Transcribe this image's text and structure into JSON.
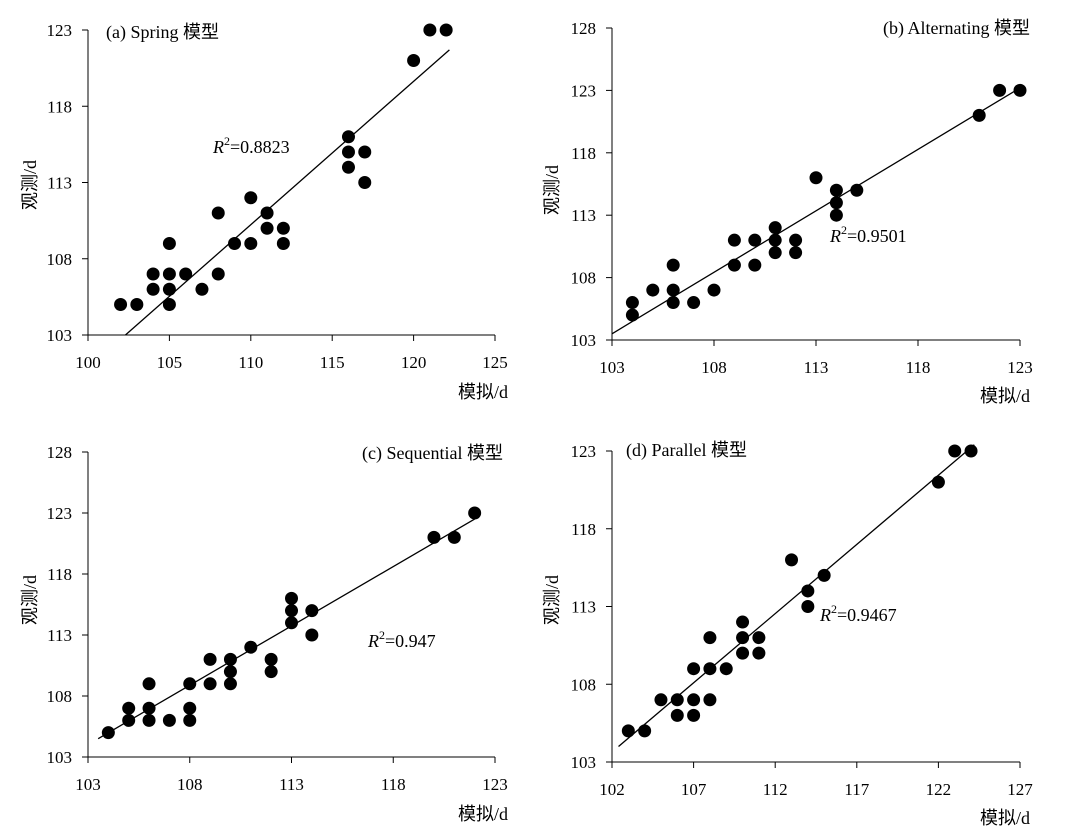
{
  "chart_data": [
    {
      "type": "scatter",
      "title": "(a) Spring 模型",
      "xlabel": "模拟/d",
      "ylabel": "观测/d",
      "xlim": [
        100,
        125
      ],
      "ylim": [
        103,
        123
      ],
      "xticks": [
        100,
        105,
        110,
        115,
        120,
        125
      ],
      "yticks": [
        103,
        108,
        113,
        118,
        123
      ],
      "r2_label": "=0.8823",
      "fit_line": {
        "x": [
          102.3,
          122.2
        ],
        "y": [
          103,
          121.7
        ]
      },
      "points": [
        [
          102,
          105
        ],
        [
          103,
          105
        ],
        [
          104,
          106
        ],
        [
          104,
          107
        ],
        [
          105,
          105
        ],
        [
          105,
          106
        ],
        [
          105,
          107
        ],
        [
          105,
          109
        ],
        [
          106,
          107
        ],
        [
          107,
          106
        ],
        [
          108,
          107
        ],
        [
          108,
          111
        ],
        [
          109,
          109
        ],
        [
          110,
          109
        ],
        [
          110,
          112
        ],
        [
          111,
          110
        ],
        [
          111,
          111
        ],
        [
          112,
          109
        ],
        [
          112,
          110
        ],
        [
          116,
          114
        ],
        [
          116,
          115
        ],
        [
          116,
          116
        ],
        [
          117,
          115
        ],
        [
          117,
          113
        ],
        [
          120,
          121
        ],
        [
          121,
          123
        ],
        [
          122,
          123
        ]
      ]
    },
    {
      "type": "scatter",
      "title": "(b) Alternating 模型",
      "xlabel": "模拟/d",
      "ylabel": "观测/d",
      "xlim": [
        103,
        123
      ],
      "ylim": [
        103,
        128
      ],
      "xticks": [
        103,
        108,
        113,
        118,
        123
      ],
      "yticks": [
        103,
        108,
        113,
        118,
        123,
        128
      ],
      "r2_label": "=0.9501",
      "fit_line": {
        "x": [
          103,
          123
        ],
        "y": [
          103.5,
          123.2
        ]
      },
      "points": [
        [
          104,
          105
        ],
        [
          104,
          106
        ],
        [
          105,
          107
        ],
        [
          106,
          106
        ],
        [
          106,
          107
        ],
        [
          106,
          109
        ],
        [
          107,
          106
        ],
        [
          108,
          107
        ],
        [
          109,
          109
        ],
        [
          109,
          111
        ],
        [
          110,
          109
        ],
        [
          110,
          111
        ],
        [
          111,
          110
        ],
        [
          111,
          111
        ],
        [
          111,
          112
        ],
        [
          112,
          110
        ],
        [
          112,
          111
        ],
        [
          113,
          116
        ],
        [
          114,
          113
        ],
        [
          114,
          114
        ],
        [
          114,
          115
        ],
        [
          115,
          115
        ],
        [
          121,
          121
        ],
        [
          122,
          123
        ],
        [
          123,
          123
        ]
      ]
    },
    {
      "type": "scatter",
      "title": "(c) Sequential 模型",
      "xlabel": "模拟/d",
      "ylabel": "观测/d",
      "xlim": [
        103,
        123
      ],
      "ylim": [
        103,
        128
      ],
      "xticks": [
        103,
        108,
        113,
        118,
        123
      ],
      "yticks": [
        103,
        108,
        113,
        118,
        123,
        128
      ],
      "r2_label": "=0.947",
      "fit_line": {
        "x": [
          103.5,
          122
        ],
        "y": [
          104.5,
          122.5
        ]
      },
      "points": [
        [
          104,
          105
        ],
        [
          105,
          106
        ],
        [
          105,
          107
        ],
        [
          106,
          106
        ],
        [
          106,
          107
        ],
        [
          106,
          109
        ],
        [
          107,
          106
        ],
        [
          108,
          106
        ],
        [
          108,
          107
        ],
        [
          108,
          109
        ],
        [
          109,
          109
        ],
        [
          109,
          111
        ],
        [
          110,
          109
        ],
        [
          110,
          110
        ],
        [
          110,
          111
        ],
        [
          111,
          112
        ],
        [
          112,
          110
        ],
        [
          112,
          111
        ],
        [
          113,
          114
        ],
        [
          113,
          115
        ],
        [
          113,
          116
        ],
        [
          114,
          113
        ],
        [
          114,
          115
        ],
        [
          120,
          121
        ],
        [
          121,
          121
        ],
        [
          122,
          123
        ]
      ]
    },
    {
      "type": "scatter",
      "title": "(d) Parallel 模型",
      "xlabel": "模拟/d",
      "ylabel": "观测/d",
      "xlim": [
        102,
        127
      ],
      "ylim": [
        103,
        123
      ],
      "xticks": [
        102,
        107,
        112,
        117,
        122,
        127
      ],
      "yticks": [
        103,
        108,
        113,
        118,
        123
      ],
      "r2_label": "=0.9467",
      "fit_line": {
        "x": [
          102.4,
          124.2
        ],
        "y": [
          104,
          123.4
        ]
      },
      "points": [
        [
          103,
          105
        ],
        [
          104,
          105
        ],
        [
          105,
          107
        ],
        [
          106,
          106
        ],
        [
          106,
          107
        ],
        [
          107,
          106
        ],
        [
          107,
          107
        ],
        [
          107,
          109
        ],
        [
          108,
          107
        ],
        [
          108,
          109
        ],
        [
          108,
          111
        ],
        [
          109,
          109
        ],
        [
          110,
          110
        ],
        [
          110,
          111
        ],
        [
          110,
          112
        ],
        [
          111,
          110
        ],
        [
          111,
          111
        ],
        [
          113,
          116
        ],
        [
          114,
          113
        ],
        [
          114,
          114
        ],
        [
          115,
          115
        ],
        [
          122,
          121
        ],
        [
          123,
          123
        ],
        [
          124,
          123
        ]
      ]
    }
  ]
}
